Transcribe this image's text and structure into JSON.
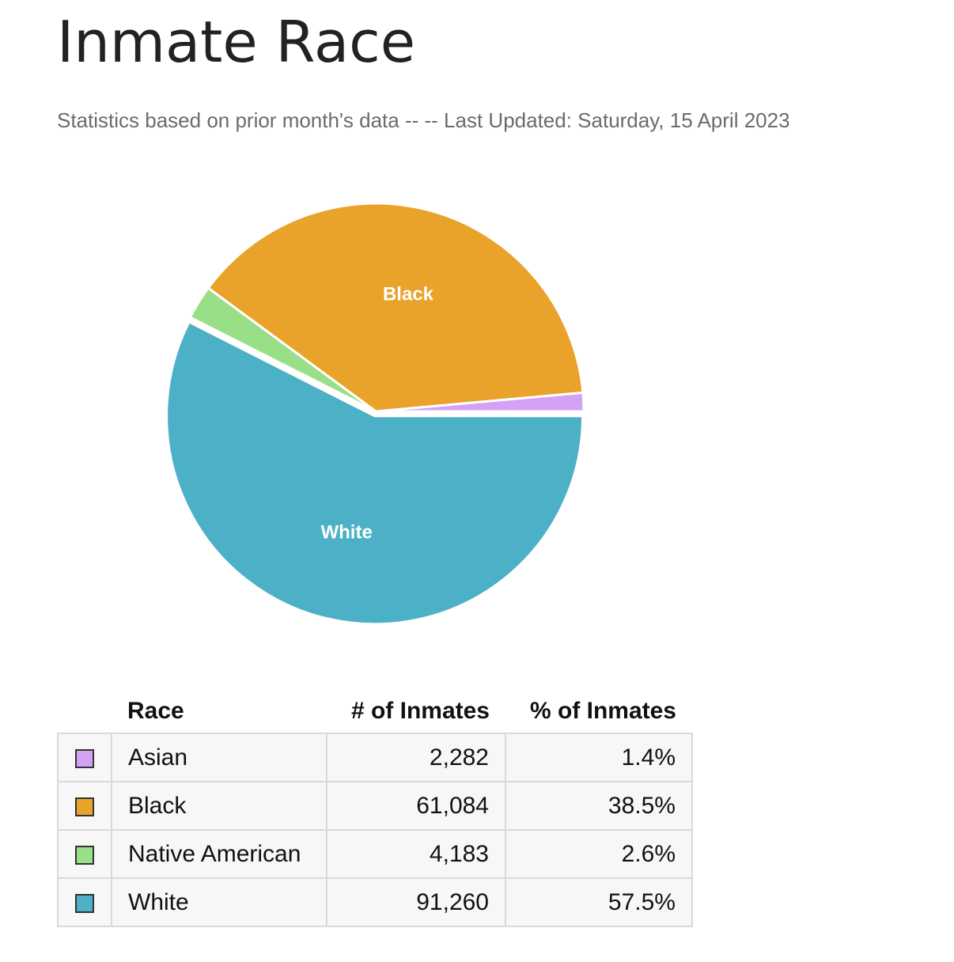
{
  "page": {
    "title": "Inmate Race",
    "subtitle": "Statistics based on prior month's data -- -- Last Updated: Saturday, 15 April 2023"
  },
  "chart_data": {
    "type": "pie",
    "slices": [
      {
        "name": "Asian",
        "value": 2282,
        "percent": 1.4,
        "color": "#d5a1f5",
        "show_label": false
      },
      {
        "name": "Black",
        "value": 61084,
        "percent": 38.5,
        "color": "#e9a32b",
        "show_label": true
      },
      {
        "name": "Native American",
        "value": 4183,
        "percent": 2.6,
        "color": "#99df88",
        "show_label": false
      },
      {
        "name": "White",
        "value": 91260,
        "percent": 57.5,
        "color": "#4cb1c6",
        "show_label": true
      }
    ],
    "exploded_slice": "White"
  },
  "table": {
    "headers": {
      "race": "Race",
      "count": "# of Inmates",
      "percent": "% of Inmates"
    },
    "rows": [
      {
        "race": "Asian",
        "count": "2,282",
        "percent": "1.4%",
        "color": "#d5a1f5"
      },
      {
        "race": "Black",
        "count": "61,084",
        "percent": "38.5%",
        "color": "#e9a32b"
      },
      {
        "race": "Native American",
        "count": "4,183",
        "percent": "2.6%",
        "color": "#99df88"
      },
      {
        "race": "White",
        "count": "91,260",
        "percent": "57.5%",
        "color": "#4cb1c6"
      }
    ]
  }
}
